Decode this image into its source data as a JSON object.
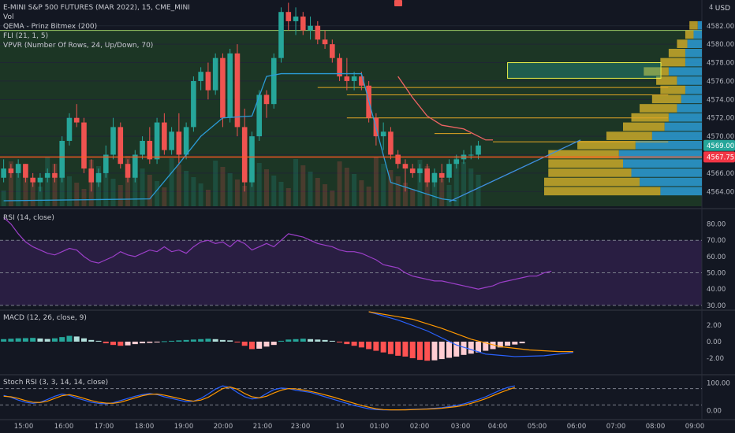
{
  "legend": {
    "title": "E-MINI S&P 500 FUTURES (MAR 2022), 15, CME_MINI",
    "vol": "Vol",
    "qema": "QEMA - Prinz Bitmex (200)",
    "fli": "FLI (21, 1, 5)",
    "vpvr": "VPVR (Number Of Rows, 24, Up/Down, 70)"
  },
  "price_axis": {
    "currency": "USD",
    "current_price": "4569.00",
    "red_line_price": "4567.75",
    "top_label": "4"
  },
  "colors": {
    "up": "#26a69a",
    "down": "#ef5350",
    "background": "#131722",
    "green_zone": "#1e3a26",
    "purple_zone": "#2a1f45",
    "yellow": "#d4b12a",
    "blue": "#2b9bd6",
    "orange": "#ff9800"
  },
  "chart_data": [
    {
      "type": "candlestick",
      "name": "price",
      "x_ticks": [
        "15:00",
        "16:00",
        "17:00",
        "18:00",
        "19:00",
        "20:00",
        "21:00",
        "23:00",
        "10",
        "01:00",
        "02:00",
        "03:00",
        "04:00",
        "05:00",
        "06:00",
        "07:00",
        "08:00",
        "09:00"
      ],
      "y_ticks": [
        4564,
        4566,
        4568,
        4570,
        4572,
        4574,
        4576,
        4578,
        4580,
        4582
      ],
      "ylim": [
        4562.4,
        4584.8
      ],
      "ohlc": [
        [
          4565.5,
          4567.5,
          4565.0,
          4566.5
        ],
        [
          4566.5,
          4567.0,
          4565.5,
          4566.0
        ],
        [
          4566.0,
          4567.5,
          4565.5,
          4567.0
        ],
        [
          4567.0,
          4567.0,
          4565.0,
          4565.5
        ],
        [
          4565.5,
          4566.0,
          4564.5,
          4565.0
        ],
        [
          4565.0,
          4566.0,
          4564.0,
          4565.5
        ],
        [
          4565.5,
          4566.5,
          4565.0,
          4566.0
        ],
        [
          4566.0,
          4567.0,
          4565.0,
          4565.5
        ],
        [
          4565.5,
          4570.0,
          4565.0,
          4569.5
        ],
        [
          4569.5,
          4572.5,
          4569.0,
          4572.0
        ],
        [
          4572.0,
          4573.5,
          4571.0,
          4571.5
        ],
        [
          4571.5,
          4572.0,
          4566.0,
          4566.5
        ],
        [
          4566.5,
          4567.5,
          4564.0,
          4565.0
        ],
        [
          4565.0,
          4566.5,
          4564.5,
          4566.0
        ],
        [
          4566.0,
          4569.0,
          4565.5,
          4568.0
        ],
        [
          4568.0,
          4572.0,
          4567.5,
          4571.0
        ],
        [
          4571.0,
          4571.5,
          4566.5,
          4567.0
        ],
        [
          4567.0,
          4567.5,
          4565.0,
          4565.5
        ],
        [
          4565.5,
          4568.5,
          4565.0,
          4568.0
        ],
        [
          4568.0,
          4570.0,
          4567.5,
          4569.5
        ],
        [
          4569.5,
          4571.0,
          4567.0,
          4567.5
        ],
        [
          4567.5,
          4572.0,
          4567.0,
          4571.5
        ],
        [
          4571.5,
          4572.5,
          4568.0,
          4568.5
        ],
        [
          4568.5,
          4571.0,
          4568.0,
          4570.5
        ],
        [
          4570.5,
          4572.5,
          4567.0,
          4568.0
        ],
        [
          4568.0,
          4571.5,
          4567.5,
          4571.0
        ],
        [
          4571.0,
          4576.5,
          4570.5,
          4576.0
        ],
        [
          4576.0,
          4577.5,
          4575.0,
          4577.0
        ],
        [
          4577.0,
          4578.0,
          4574.0,
          4575.0
        ],
        [
          4575.0,
          4579.0,
          4574.5,
          4578.5
        ],
        [
          4578.5,
          4579.0,
          4571.0,
          4572.0
        ],
        [
          4572.0,
          4579.5,
          4571.5,
          4579.0
        ],
        [
          4579.0,
          4580.0,
          4570.0,
          4571.0
        ],
        [
          4571.0,
          4573.0,
          4564.0,
          4565.0
        ],
        [
          4565.0,
          4570.5,
          4564.5,
          4570.0
        ],
        [
          4570.0,
          4575.0,
          4569.5,
          4574.5
        ],
        [
          4574.5,
          4575.0,
          4572.0,
          4573.5
        ],
        [
          4573.5,
          4579.0,
          4573.0,
          4578.5
        ],
        [
          4578.5,
          4584.0,
          4578.0,
          4583.5
        ],
        [
          4583.5,
          4584.5,
          4581.5,
          4582.5
        ],
        [
          4582.5,
          4584.0,
          4581.0,
          4583.0
        ],
        [
          4583.0,
          4583.5,
          4581.0,
          4581.5
        ],
        [
          4581.5,
          4583.0,
          4580.5,
          4582.0
        ],
        [
          4582.0,
          4582.5,
          4580.0,
          4580.5
        ],
        [
          4580.5,
          4581.5,
          4579.5,
          4580.0
        ],
        [
          4580.0,
          4580.5,
          4578.0,
          4578.5
        ],
        [
          4578.5,
          4579.0,
          4576.0,
          4576.5
        ],
        [
          4576.5,
          4578.5,
          4575.0,
          4576.0
        ],
        [
          4576.0,
          4577.0,
          4575.0,
          4576.5
        ],
        [
          4576.5,
          4577.0,
          4575.0,
          4575.5
        ],
        [
          4575.5,
          4576.0,
          4571.5,
          4572.0
        ],
        [
          4572.0,
          4572.5,
          4569.0,
          4570.0
        ],
        [
          4570.0,
          4571.5,
          4568.5,
          4570.5
        ],
        [
          4570.5,
          4571.0,
          4567.5,
          4568.0
        ],
        [
          4568.0,
          4568.5,
          4566.5,
          4567.0
        ],
        [
          4567.0,
          4567.5,
          4564.0,
          4566.5
        ],
        [
          4566.5,
          4567.0,
          4565.5,
          4566.0
        ],
        [
          4566.0,
          4567.0,
          4565.0,
          4566.5
        ],
        [
          4566.5,
          4567.0,
          4564.5,
          4565.0
        ],
        [
          4565.0,
          4566.5,
          4564.5,
          4566.0
        ],
        [
          4566.0,
          4567.0,
          4565.0,
          4565.5
        ],
        [
          4565.5,
          4567.5,
          4565.0,
          4567.0
        ],
        [
          4567.0,
          4568.0,
          4566.5,
          4567.5
        ],
        [
          4567.5,
          4568.5,
          4567.0,
          4568.0
        ],
        [
          4568.0,
          4569.0,
          4567.5,
          4568.0
        ],
        [
          4568.0,
          4569.5,
          4567.5,
          4569.0
        ]
      ],
      "ma_blue": [
        [
          0,
          4563.0
        ],
        [
          20,
          4563.2
        ],
        [
          24,
          4567.0
        ],
        [
          27,
          4570.0
        ],
        [
          30,
          4572.0
        ],
        [
          34,
          4572.2
        ],
        [
          36,
          4576.5
        ],
        [
          38,
          4576.8
        ],
        [
          45,
          4576.8
        ],
        [
          49,
          4576.8
        ],
        [
          53,
          4565.0
        ],
        [
          60,
          4563.2
        ],
        [
          62,
          4563.0
        ]
      ],
      "fli_red": [
        [
          54,
          4576.5
        ],
        [
          56,
          4574.2
        ],
        [
          58,
          4572.2
        ],
        [
          60,
          4571.2
        ],
        [
          63,
          4570.8
        ],
        [
          66,
          4569.6
        ],
        [
          67,
          4569.6
        ]
      ],
      "trendline_blue": [
        [
          61,
          4562.9
        ],
        [
          79,
          4569.6
        ]
      ],
      "red_line_level": 4567.75,
      "orange_levels": [
        {
          "from": 43,
          "to": 91,
          "y": 4575.3
        },
        {
          "from": 47,
          "to": 91,
          "y": 4574.5
        },
        {
          "from": 47,
          "to": 91,
          "y": 4572.0
        },
        {
          "from": 67,
          "to": 91,
          "y": 4569.4
        },
        {
          "from": 59,
          "to": 64,
          "y": 4570.3
        }
      ],
      "vpvr_rows": [
        {
          "price": 4564.0,
          "up": 280,
          "down": 100
        },
        {
          "price": 4565.0,
          "up": 230,
          "down": 150
        },
        {
          "price": 4566.0,
          "up": 200,
          "down": 170
        },
        {
          "price": 4567.0,
          "up": 180,
          "down": 190
        },
        {
          "price": 4568.0,
          "up": 170,
          "down": 200
        },
        {
          "price": 4569.0,
          "up": 140,
          "down": 160
        },
        {
          "price": 4570.0,
          "up": 110,
          "down": 120
        },
        {
          "price": 4571.0,
          "up": 100,
          "down": 90
        },
        {
          "price": 4572.0,
          "up": 90,
          "down": 80
        },
        {
          "price": 4573.0,
          "up": 90,
          "down": 60
        },
        {
          "price": 4574.0,
          "up": 70,
          "down": 50
        },
        {
          "price": 4575.0,
          "up": 60,
          "down": 40
        },
        {
          "price": 4576.0,
          "up": 50,
          "down": 60
        },
        {
          "price": 4577.0,
          "up": 60,
          "down": 80
        },
        {
          "price": 4578.0,
          "up": 60,
          "down": 40
        },
        {
          "price": 4579.0,
          "up": 40,
          "down": 40
        },
        {
          "price": 4580.0,
          "up": 25,
          "down": 35
        },
        {
          "price": 4581.0,
          "up": 20,
          "down": 20
        },
        {
          "price": 4582.0,
          "up": 20,
          "down": 10
        }
      ],
      "highlight_box": {
        "price_top": 4578.0,
        "price_bottom": 4576.3,
        "x_from": 69,
        "x_to": 90
      }
    },
    {
      "type": "line",
      "name": "RSI (14, close)",
      "y_ticks": [
        30,
        40,
        50,
        60,
        70,
        80
      ],
      "ylim": [
        28,
        88
      ],
      "bands": [
        30,
        50,
        70
      ],
      "values": [
        84,
        80,
        74,
        69,
        66,
        64,
        62,
        61,
        63,
        65,
        64,
        60,
        57,
        56,
        58,
        60,
        63,
        61,
        60,
        62,
        64,
        63,
        66,
        63,
        64,
        62,
        66,
        69,
        70,
        68,
        69,
        66,
        70,
        68,
        64,
        66,
        68,
        66,
        70,
        74,
        73,
        72,
        70,
        68,
        67,
        66,
        64,
        63,
        63,
        62,
        60,
        58,
        55,
        54,
        53,
        50,
        48,
        47,
        46,
        45,
        45,
        44,
        43,
        42,
        41,
        40,
        41,
        42,
        44,
        45,
        46,
        47,
        48,
        48,
        50,
        51
      ]
    },
    {
      "type": "bar",
      "name": "MACD (12, 26, close, 9)",
      "y_ticks": [
        -2.0,
        0.0,
        2.0
      ],
      "ylim": [
        -3.8,
        3.6
      ],
      "histogram": [
        0.3,
        0.35,
        0.4,
        0.42,
        0.45,
        0.38,
        0.32,
        0.4,
        0.55,
        0.7,
        0.62,
        0.4,
        0.2,
        0.1,
        -0.2,
        -0.4,
        -0.5,
        -0.45,
        -0.3,
        -0.2,
        -0.15,
        -0.1,
        0.05,
        0.1,
        0.15,
        0.2,
        0.25,
        0.3,
        0.35,
        0.3,
        0.2,
        0.15,
        -0.1,
        -0.5,
        -0.9,
        -0.85,
        -0.6,
        -0.4,
        0.1,
        0.25,
        0.3,
        0.35,
        0.3,
        0.25,
        0.2,
        0.1,
        -0.1,
        -0.3,
        -0.5,
        -0.7,
        -0.9,
        -1.1,
        -1.3,
        -1.5,
        -1.7,
        -1.8,
        -2.0,
        -2.2,
        -2.3,
        -2.25,
        -2.1,
        -1.95,
        -1.8,
        -1.6,
        -1.45,
        -1.3,
        -1.1,
        -0.9,
        -0.7,
        -0.5,
        -0.35,
        -0.2
      ],
      "macd_line": [
        [
          50,
          3.6
        ],
        [
          54,
          2.6
        ],
        [
          58,
          1.3
        ],
        [
          62,
          -0.4
        ],
        [
          66,
          -1.5
        ],
        [
          70,
          -1.8
        ],
        [
          74,
          -1.7
        ],
        [
          78,
          -1.3
        ]
      ],
      "signal_line": [
        [
          50,
          3.6
        ],
        [
          56,
          2.7
        ],
        [
          60,
          1.6
        ],
        [
          64,
          0.3
        ],
        [
          68,
          -0.6
        ],
        [
          72,
          -1.0
        ],
        [
          76,
          -1.2
        ],
        [
          78,
          -1.2
        ]
      ]
    },
    {
      "type": "line",
      "name": "Stoch RSI (3, 3, 14, 14, close)",
      "y_ticks": [
        0.0,
        100.0
      ],
      "ylim": [
        -25,
        125
      ],
      "bands": [
        20,
        80
      ],
      "k_values": [
        55,
        48,
        38,
        30,
        26,
        30,
        40,
        52,
        60,
        55,
        45,
        38,
        30,
        26,
        24,
        28,
        36,
        44,
        52,
        58,
        62,
        58,
        50,
        44,
        38,
        32,
        34,
        44,
        60,
        78,
        90,
        84,
        66,
        50,
        42,
        46,
        62,
        76,
        82,
        80,
        74,
        70,
        66,
        58,
        50,
        42,
        34,
        26,
        18,
        12,
        6,
        3,
        2,
        2,
        2,
        3,
        4,
        5,
        6,
        8,
        10,
        14,
        18,
        24,
        32,
        40,
        50,
        62,
        74,
        84,
        90
      ],
      "d_values": [
        52,
        50,
        44,
        36,
        30,
        29,
        34,
        44,
        54,
        58,
        52,
        44,
        36,
        30,
        27,
        26,
        30,
        38,
        46,
        54,
        59,
        60,
        56,
        50,
        44,
        38,
        34,
        38,
        48,
        64,
        80,
        86,
        78,
        62,
        50,
        46,
        52,
        64,
        74,
        80,
        79,
        75,
        70,
        64,
        57,
        50,
        42,
        34,
        26,
        18,
        12,
        6,
        3,
        2,
        2,
        2,
        3,
        4,
        5,
        6,
        8,
        11,
        14,
        19,
        26,
        34,
        43,
        54,
        65,
        75,
        84
      ]
    }
  ]
}
